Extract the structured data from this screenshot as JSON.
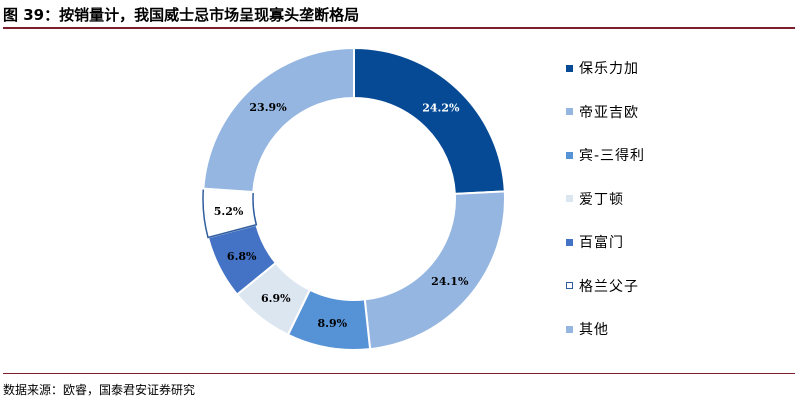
{
  "title": "图 39：按销量计，我国威士忌市场呈现寡头垄断格局",
  "source": "数据来源：欧睿，国泰君安证券研究",
  "chart_data": {
    "type": "pie",
    "variant": "donut",
    "title": "",
    "legend_position": "right",
    "series": [
      {
        "name": "保乐力加",
        "value": 24.2,
        "label": "24.2%",
        "color": "#064a95"
      },
      {
        "name": "帝亚吉欧",
        "value": 24.1,
        "label": "24.1%",
        "color": "#94b6e1"
      },
      {
        "name": "宾-三得利",
        "value": 8.9,
        "label": "8.9%",
        "color": "#5592d6"
      },
      {
        "name": "爱丁顿",
        "value": 6.9,
        "label": "6.9%",
        "color": "#dce6f1"
      },
      {
        "name": "百富门",
        "value": 6.8,
        "label": "6.8%",
        "color": "#4472c4"
      },
      {
        "name": "格兰父子",
        "value": 5.2,
        "label": "5.2%",
        "color": "#ffffff",
        "outline": "#2f5d9e"
      },
      {
        "name": "其他",
        "value": 23.9,
        "label": "23.9%",
        "color": "#94b6e1"
      }
    ]
  }
}
